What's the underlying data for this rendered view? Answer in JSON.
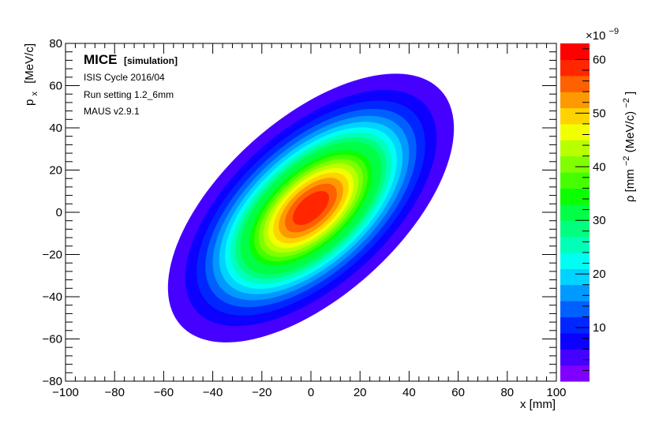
{
  "chart_data": {
    "type": "heatmap",
    "title": "",
    "xlabel": "x [mm]",
    "ylabel_main": "p",
    "ylabel_sub": "x",
    "ylabel_unit": "[MeV/c]",
    "xlim": [
      -100,
      100
    ],
    "ylim": [
      -80,
      80
    ],
    "xticks": [
      -100,
      -80,
      -60,
      -40,
      -20,
      0,
      20,
      40,
      60,
      80,
      100
    ],
    "yticks": [
      -80,
      -60,
      -40,
      -20,
      0,
      20,
      40,
      60,
      80
    ],
    "xtick_labels": [
      "−100",
      "−80",
      "−60",
      "−40",
      "−20",
      "0",
      "20",
      "40",
      "60",
      "80",
      "100"
    ],
    "ytick_labels": [
      "−80",
      "−60",
      "−40",
      "−20",
      "0",
      "20",
      "40",
      "60",
      "80"
    ],
    "grid": false,
    "colorbar": {
      "zlim": [
        0,
        63
      ],
      "ticks": [
        10,
        20,
        30,
        40,
        50,
        60
      ],
      "tick_labels": [
        "10",
        "20",
        "30",
        "40",
        "50",
        "60"
      ],
      "exponent_base": "×10",
      "exponent": "−9",
      "label_text": "ρ [mm",
      "label_sup1": "−2",
      "label_mid": "(MeV/c)",
      "label_sup2": "−2",
      "label_end": "]",
      "levels": 20
    },
    "distribution": {
      "center_x": 0,
      "center_y": 2,
      "peak": 63,
      "contour_peak_values": [
        3,
        6,
        9,
        12,
        15,
        18,
        21,
        24,
        27,
        30,
        33,
        36,
        39,
        42,
        45,
        48,
        51,
        54,
        57,
        60
      ],
      "correlation_direction": "positive"
    }
  },
  "annotations": {
    "experiment": "MICE",
    "tag": "[simulation]",
    "cycle": "ISIS Cycle 2016/04",
    "run_setting": "Run setting 1.2_6mm",
    "software": "MAUS v2.9.1"
  },
  "colors": {
    "palette": [
      "#8000ff",
      "#4600ff",
      "#0c00ff",
      "#0026ff",
      "#0060ff",
      "#0099ff",
      "#00d3ff",
      "#00fff2",
      "#00ffb8",
      "#00ff7f",
      "#00ff45",
      "#0bff00",
      "#45ff00",
      "#7fff00",
      "#b8ff00",
      "#f2ff00",
      "#ffd300",
      "#ff9900",
      "#ff6000",
      "#ff2600",
      "#ff0000"
    ]
  }
}
